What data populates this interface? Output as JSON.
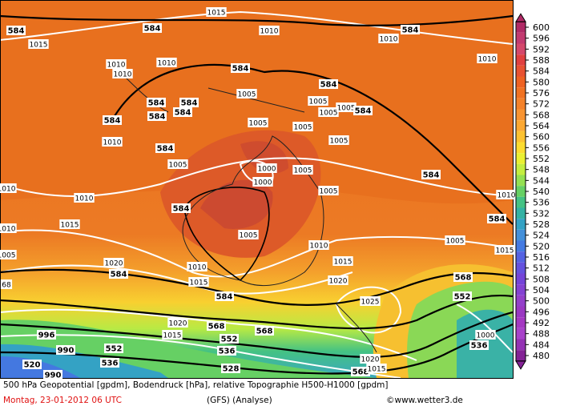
{
  "map": {
    "contour_labels": [
      "584",
      "584",
      "1015",
      "1010",
      "1010",
      "584",
      "1015",
      "1010",
      "1010",
      "1010",
      "584",
      "1010",
      "584",
      "584",
      "584",
      "1005",
      "1005",
      "1005",
      "584",
      "584",
      "584",
      "584",
      "1005",
      "1005",
      "1005",
      "1010",
      "584",
      "1005",
      "1005",
      "1000",
      "1000",
      "1005",
      "1010",
      "1010",
      "1005",
      "584",
      "1010",
      "584",
      "584",
      "1015",
      "1010",
      "1005",
      "1010",
      "1005",
      "1015",
      "1005",
      "1020",
      "1010",
      "584",
      "1015",
      "68",
      "1015",
      "1020",
      "568",
      "584",
      "1025",
      "552",
      "1020",
      "568",
      "568",
      "1015",
      "552",
      "1000",
      "996",
      "990",
      "552",
      "536",
      "536",
      "536",
      "520",
      "528",
      "568",
      "1020",
      "1015",
      "990"
    ],
    "legend": {
      "values": [
        600,
        596,
        592,
        588,
        584,
        580,
        576,
        572,
        568,
        564,
        560,
        556,
        552,
        548,
        544,
        540,
        536,
        532,
        528,
        524,
        520,
        516,
        512,
        508,
        504,
        500,
        496,
        492,
        488,
        484,
        480
      ],
      "colors": [
        "#b02a66",
        "#c23a70",
        "#d4486c",
        "#e04040",
        "#e85232",
        "#ee6222",
        "#f07222",
        "#f4822a",
        "#f89432",
        "#fca832",
        "#fcc232",
        "#fcdc30",
        "#eaf032",
        "#c4ee40",
        "#94e052",
        "#66d064",
        "#44c284",
        "#34b2a4",
        "#34a2c4",
        "#4490da",
        "#447ae2",
        "#5462e2",
        "#6452de",
        "#7444d8",
        "#8442d2",
        "#9440ca",
        "#9a38c2",
        "#a438c2",
        "#a842ca",
        "#9432b4",
        "#842296"
      ]
    },
    "footer": {
      "line1": "500 hPa Geopotential [gpdm], Bodendruck [hPa], relative Topographie H500-H1000 [gpdm]",
      "date": "Montag, 23-01-2012  06 UTC",
      "model": "(GFS)  (Analyse)",
      "credit": "©www.wetter3.de"
    }
  }
}
